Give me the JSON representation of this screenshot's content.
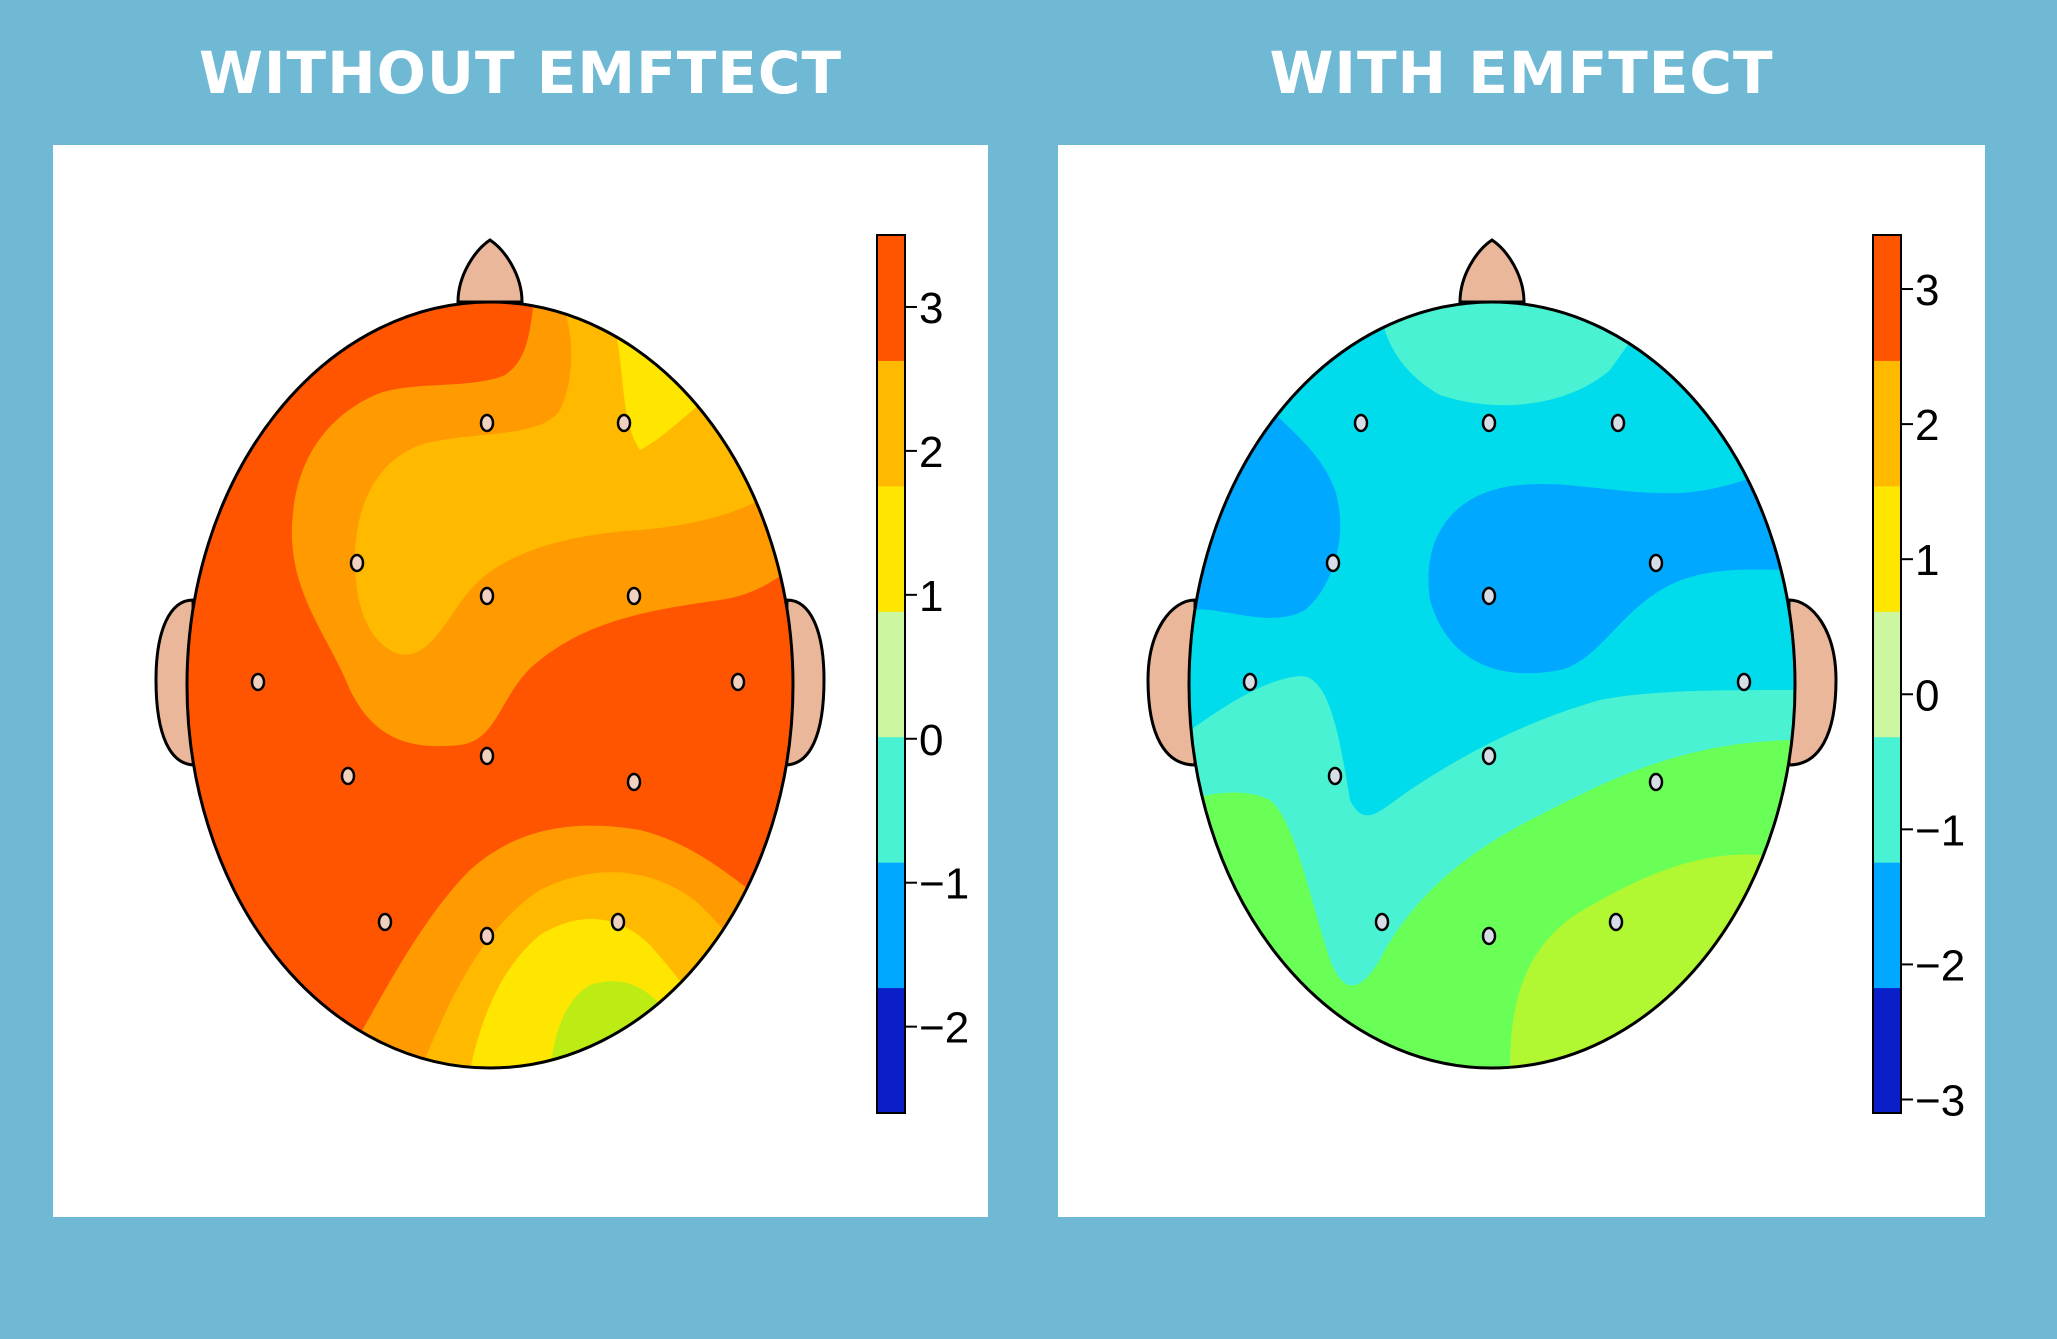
{
  "colors": {
    "background": "#6fb9d5",
    "skin": "#eab79a",
    "electrode": "#d7dde6",
    "scale": [
      "#0a1fc8",
      "#00a9ff",
      "#49f2d2",
      "#cdf6a0",
      "#ffe600",
      "#ffba00",
      "#ff5500"
    ]
  },
  "chart_data": [
    {
      "type": "heatmap",
      "subtype": "topographic-scalp-map",
      "title": "WITHOUT EMFTECT",
      "colorbar": {
        "ticks": [
          "3",
          "2",
          "1",
          "0",
          "−1",
          "−2"
        ],
        "tick_values": [
          3,
          2,
          1,
          0,
          -1,
          -2
        ],
        "range": [
          -2.6,
          3.5
        ],
        "bands": 7
      },
      "regions": [
        {
          "name": "background",
          "level": 3,
          "color": "#ff5500"
        },
        {
          "name": "frontal-band",
          "level": 2.5,
          "color": "#ff9a00"
        },
        {
          "name": "frontal-core",
          "level": 2,
          "color": "#ffba00"
        },
        {
          "name": "right-frontal-peak",
          "level": 1.5,
          "color": "#ffe600"
        },
        {
          "name": "occipital-outer",
          "level": 2.5,
          "color": "#ff9a00"
        },
        {
          "name": "occipital-mid",
          "level": 2,
          "color": "#ffba00"
        },
        {
          "name": "occipital-inner",
          "level": 1.5,
          "color": "#ffe600"
        },
        {
          "name": "occipital-min",
          "level": 0.8,
          "color": "#bdec14"
        }
      ],
      "electrode_count": 13
    },
    {
      "type": "heatmap",
      "subtype": "topographic-scalp-map",
      "title": "WITH EMFTECT",
      "colorbar": {
        "ticks": [
          "3",
          "2",
          "1",
          "0",
          "−1",
          "−2",
          "−3"
        ],
        "tick_values": [
          3,
          2,
          1,
          0,
          -1,
          -2,
          -3
        ],
        "range": [
          -3.1,
          3.4
        ],
        "bands": 7
      },
      "regions": [
        {
          "name": "background",
          "level": -1.2,
          "color": "#00dcec"
        },
        {
          "name": "frontal-cap",
          "level": -0.6,
          "color": "#49f2d2"
        },
        {
          "name": "left-frontal-low",
          "level": -1.7,
          "color": "#00a9ff"
        },
        {
          "name": "central-low",
          "level": -1.7,
          "color": "#00a9ff"
        },
        {
          "name": "posterior-band",
          "level": -0.6,
          "color": "#49f2d2"
        },
        {
          "name": "occipital-green",
          "level": 0.0,
          "color": "#6aff57"
        },
        {
          "name": "right-occipital-peak",
          "level": 0.5,
          "color": "#b1f832"
        }
      ],
      "electrode_count": 14
    }
  ]
}
